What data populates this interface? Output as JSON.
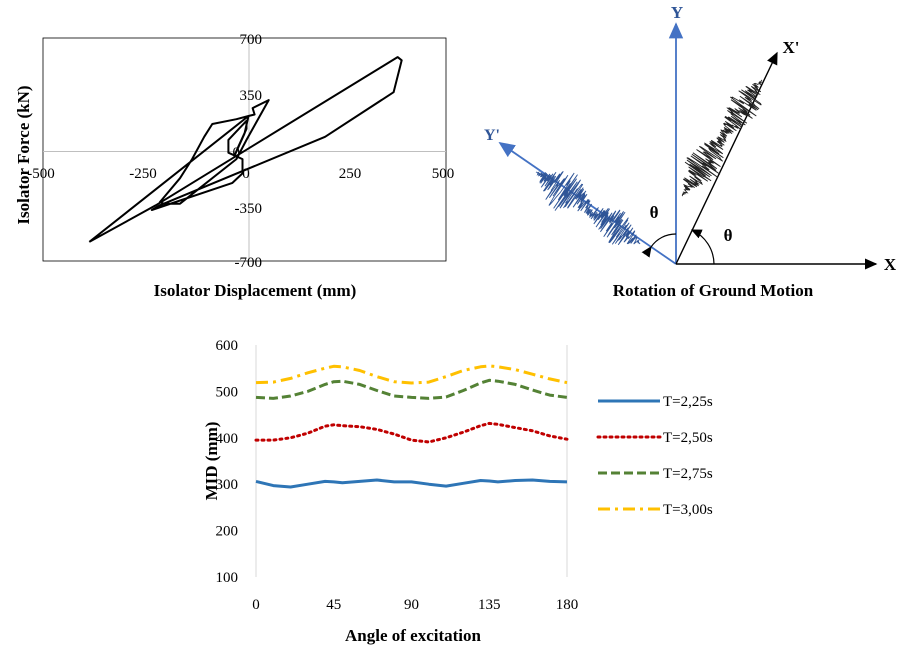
{
  "panels": {
    "hysteresis": {
      "ylabel": "Isolator Force (kN)",
      "xlabel": "Isolator Displacement (mm)",
      "xticks": [
        "-500",
        "-250",
        "0",
        "250",
        "500"
      ],
      "yticks": [
        "700",
        "350",
        "0",
        "-350",
        "-700"
      ]
    },
    "rotation": {
      "caption": "Rotation of Ground Motion",
      "label_y": "Y",
      "label_x": "X",
      "label_xp": "X'",
      "label_yp": "Y'",
      "label_theta1": "θ",
      "label_theta2": "θ"
    }
  },
  "chart_data": [
    {
      "type": "line",
      "xlabel": "Isolator Displacement (mm)",
      "ylabel": "Isolator Force (kN)",
      "xlim": [
        -500,
        500
      ],
      "ylim": [
        -700,
        700
      ],
      "grid": false,
      "series": [
        {
          "values_xy": [
            [
              -385,
              -580
            ],
            [
              -220,
              -350
            ],
            [
              380,
              580
            ],
            [
              390,
              560
            ],
            [
              370,
              360
            ],
            [
              200,
              80
            ],
            [
              -210,
              -350
            ],
            [
              -230,
              -380
            ],
            [
              -30,
              -210
            ],
            [
              -5,
              -150
            ],
            [
              -5,
              -60
            ],
            [
              -40,
              -20
            ],
            [
              -40,
              60
            ],
            [
              5,
              180
            ],
            [
              5,
              130
            ],
            [
              -15,
              20
            ],
            [
              -25,
              -40
            ],
            [
              0,
              100
            ],
            [
              10,
              210
            ],
            [
              25,
              220
            ],
            [
              20,
              260
            ],
            [
              60,
              310
            ],
            [
              5,
              60
            ],
            [
              -20,
              -60
            ],
            [
              -160,
              -340
            ],
            [
              -200,
              -340
            ],
            [
              -210,
              -330
            ],
            [
              -160,
              -180
            ],
            [
              -130,
              -60
            ],
            [
              -100,
              80
            ],
            [
              -80,
              160
            ],
            [
              -20,
              190
            ],
            [
              10,
              210
            ],
            [
              -385,
              -580
            ]
          ]
        }
      ]
    },
    {
      "type": "line",
      "title": "",
      "xlabel": "Angle of excitation",
      "ylabel": "MID (mm)",
      "xlim": [
        0,
        180
      ],
      "ylim": [
        100,
        600
      ],
      "xticks": [
        0,
        45,
        90,
        135,
        180
      ],
      "yticks": [
        100,
        200,
        300,
        400,
        500,
        600
      ],
      "grid": false,
      "legend": "right",
      "x": [
        0,
        10,
        20,
        30,
        40,
        45,
        50,
        60,
        70,
        80,
        90,
        100,
        110,
        120,
        130,
        135,
        140,
        150,
        160,
        170,
        180
      ],
      "series": [
        {
          "name": "T=2,25s",
          "color": "#2e75b6",
          "style": "solid",
          "values": [
            306,
            297,
            294,
            300,
            306,
            305,
            303,
            306,
            309,
            305,
            305,
            300,
            296,
            302,
            308,
            307,
            305,
            308,
            309,
            306,
            305
          ]
        },
        {
          "name": "T=2,50s",
          "color": "#c00000",
          "style": "dotted",
          "values": [
            395,
            395,
            400,
            410,
            425,
            428,
            426,
            424,
            418,
            408,
            395,
            391,
            400,
            412,
            426,
            431,
            429,
            422,
            415,
            404,
            397
          ]
        },
        {
          "name": "T=2,75s",
          "color": "#548235",
          "style": "dashed",
          "values": [
            487,
            485,
            490,
            500,
            515,
            521,
            522,
            515,
            502,
            490,
            487,
            485,
            488,
            502,
            518,
            524,
            522,
            515,
            503,
            492,
            487
          ]
        },
        {
          "name": "T=3,00s",
          "color": "#ffc000",
          "style": "dashdot",
          "values": [
            519,
            520,
            528,
            540,
            550,
            554,
            553,
            545,
            532,
            521,
            518,
            520,
            532,
            545,
            553,
            555,
            553,
            547,
            537,
            527,
            519
          ]
        }
      ]
    }
  ]
}
